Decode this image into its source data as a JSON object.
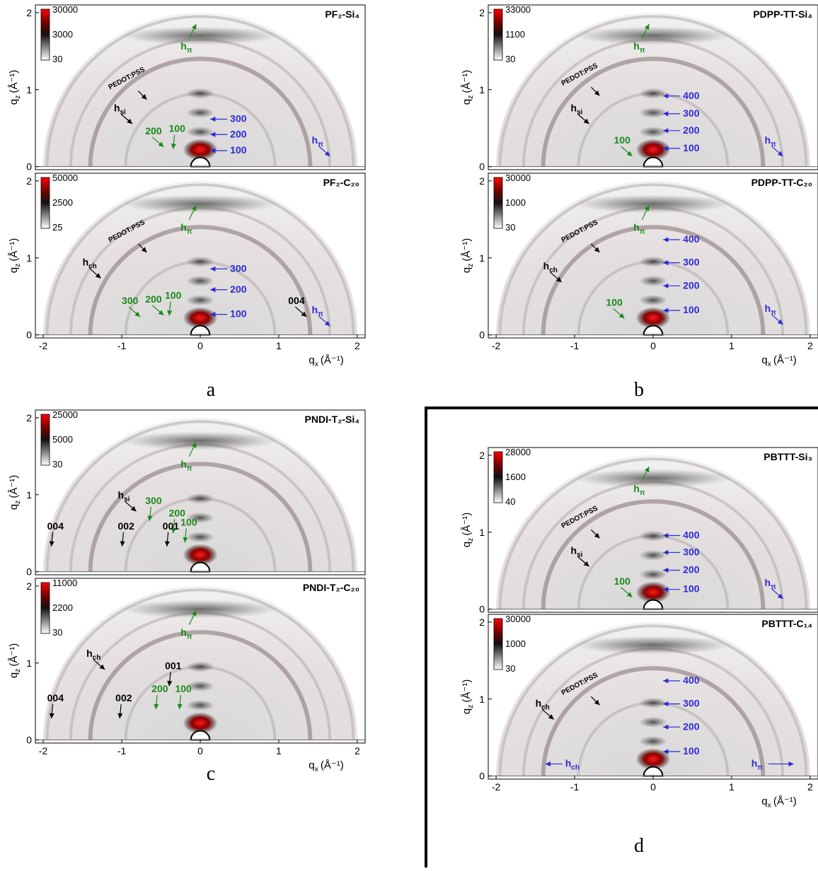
{
  "x_label": {
    "symbol": "q",
    "sub": "x",
    "unit": "(Å⁻¹)"
  },
  "y_label": {
    "symbol": "q",
    "sub": "z",
    "unit": "(Å⁻¹)"
  },
  "xlim": [
    -2.1,
    2.1
  ],
  "xticks": [
    -2,
    -1,
    0,
    1,
    2
  ],
  "ylim": [
    -0.04,
    2.1
  ],
  "yticks": [
    0,
    1,
    2
  ],
  "panels": [
    {
      "caption": "a",
      "plots": [
        {
          "title": "PF₂-Si₄",
          "colorbar": [
            30000,
            3000,
            30
          ],
          "annotations": [
            {
              "text": "h",
              "sub": "π",
              "color": "green"
            },
            {
              "text": "PEDOT:PSS",
              "color": "black"
            },
            {
              "text": "h",
              "sub": "si",
              "color": "black"
            },
            {
              "text": "200",
              "color": "green"
            },
            {
              "text": "100",
              "color": "green"
            },
            {
              "text": "300",
              "color": "blue"
            },
            {
              "text": "200",
              "color": "blue"
            },
            {
              "text": "100",
              "color": "blue"
            },
            {
              "text": "h",
              "sub": "π",
              "color": "blue"
            }
          ]
        },
        {
          "title": "PF₂-C₂₀",
          "colorbar": [
            50000,
            2500,
            25
          ],
          "annotations": [
            {
              "text": "h",
              "sub": "π",
              "color": "green"
            },
            {
              "text": "PEDOT:PSS",
              "color": "black"
            },
            {
              "text": "h",
              "sub": "ch",
              "color": "black"
            },
            {
              "text": "300",
              "color": "green"
            },
            {
              "text": "200",
              "color": "green"
            },
            {
              "text": "100",
              "color": "green"
            },
            {
              "text": "300",
              "color": "blue"
            },
            {
              "text": "200",
              "color": "blue"
            },
            {
              "text": "100",
              "color": "blue"
            },
            {
              "text": "004",
              "color": "black"
            },
            {
              "text": "h",
              "sub": "π",
              "color": "blue"
            }
          ]
        }
      ]
    },
    {
      "caption": "b",
      "plots": [
        {
          "title": "PDPP-TT-Si₄",
          "colorbar": [
            33000,
            1100,
            30
          ],
          "annotations": [
            {
              "text": "h",
              "sub": "π",
              "color": "green"
            },
            {
              "text": "PEDOT:PSS",
              "color": "black"
            },
            {
              "text": "h",
              "sub": "si",
              "color": "black"
            },
            {
              "text": "100",
              "color": "green"
            },
            {
              "text": "400",
              "color": "blue"
            },
            {
              "text": "300",
              "color": "blue"
            },
            {
              "text": "200",
              "color": "blue"
            },
            {
              "text": "100",
              "color": "blue"
            },
            {
              "text": "h",
              "sub": "π",
              "color": "blue"
            }
          ]
        },
        {
          "title": "PDPP-TT-C₂₀",
          "colorbar": [
            30000,
            1000,
            30
          ],
          "annotations": [
            {
              "text": "h",
              "sub": "π",
              "color": "green"
            },
            {
              "text": "PEDOT:PSS",
              "color": "black"
            },
            {
              "text": "h",
              "sub": "ch",
              "color": "black"
            },
            {
              "text": "100",
              "color": "green"
            },
            {
              "text": "400",
              "color": "blue"
            },
            {
              "text": "300",
              "color": "blue"
            },
            {
              "text": "200",
              "color": "blue"
            },
            {
              "text": "100",
              "color": "blue"
            },
            {
              "text": "h",
              "sub": "π",
              "color": "blue"
            }
          ]
        }
      ]
    },
    {
      "caption": "c",
      "plots": [
        {
          "title": "PNDI-T₂-Si₄",
          "colorbar": [
            25000,
            5000,
            30
          ],
          "annotations": [
            {
              "text": "h",
              "sub": "π",
              "color": "green"
            },
            {
              "text": "h",
              "sub": "si",
              "color": "black"
            },
            {
              "text": "300",
              "color": "green"
            },
            {
              "text": "200",
              "color": "green"
            },
            {
              "text": "100",
              "color": "green"
            },
            {
              "text": "001",
              "color": "black"
            },
            {
              "text": "002",
              "color": "black"
            },
            {
              "text": "004",
              "color": "black"
            }
          ]
        },
        {
          "title": "PNDI-T₂-C₂₀",
          "colorbar": [
            11000,
            2200,
            30
          ],
          "annotations": [
            {
              "text": "h",
              "sub": "π",
              "color": "green"
            },
            {
              "text": "h",
              "sub": "ch",
              "color": "black"
            },
            {
              "text": "001",
              "color": "black"
            },
            {
              "text": "200",
              "color": "green"
            },
            {
              "text": "100",
              "color": "green"
            },
            {
              "text": "002",
              "color": "black"
            },
            {
              "text": "004",
              "color": "black"
            }
          ]
        }
      ]
    },
    {
      "caption": "d",
      "plots": [
        {
          "title": "PBTTT-Si₃",
          "colorbar": [
            28000,
            1600,
            40
          ],
          "annotations": [
            {
              "text": "h",
              "sub": "π",
              "color": "green"
            },
            {
              "text": "PEDOT:PSS",
              "color": "black"
            },
            {
              "text": "h",
              "sub": "si",
              "color": "black"
            },
            {
              "text": "100",
              "color": "green"
            },
            {
              "text": "400",
              "color": "blue"
            },
            {
              "text": "300",
              "color": "blue"
            },
            {
              "text": "200",
              "color": "blue"
            },
            {
              "text": "100",
              "color": "blue"
            },
            {
              "text": "h",
              "sub": "π",
              "color": "blue"
            }
          ]
        },
        {
          "title": "PBTTT-C₁₄",
          "colorbar": [
            30000,
            1000,
            30
          ],
          "annotations": [
            {
              "text": "h",
              "sub": "ch",
              "color": "black"
            },
            {
              "text": "PEDOT:PSS",
              "color": "black"
            },
            {
              "text": "400",
              "color": "blue"
            },
            {
              "text": "300",
              "color": "blue"
            },
            {
              "text": "200",
              "color": "blue"
            },
            {
              "text": "100",
              "color": "blue"
            },
            {
              "text": "h",
              "sub": "ch",
              "color": "blue"
            },
            {
              "text": "h",
              "sub": "π",
              "color": "blue"
            }
          ]
        }
      ]
    }
  ]
}
